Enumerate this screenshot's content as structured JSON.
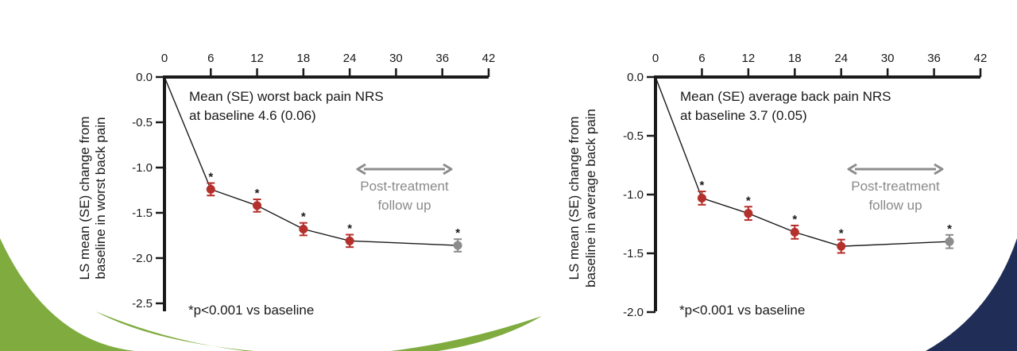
{
  "colors": {
    "treatment_point": "#b52f2b",
    "followup_point": "#8c8c8c",
    "axis": "#1a1a1a",
    "deco_green": "#7fab3f",
    "deco_navy": "#1f2d57"
  },
  "chart_data": [
    {
      "type": "line",
      "x_ticks": [
        "0",
        "6",
        "12",
        "18",
        "24",
        "30",
        "36",
        "42"
      ],
      "xlim": [
        0,
        42
      ],
      "y_ticks": [
        "0.0",
        "-0.5",
        "-1.0",
        "-1.5",
        "-2.0",
        "-2.5"
      ],
      "ylim": [
        -2.5,
        0
      ],
      "ylabel": [
        "LS mean (SE) change from",
        "baseline in worst back pain"
      ],
      "annotation": [
        "Mean (SE) worst back pain NRS",
        "at baseline 4.6 (0.06)"
      ],
      "followup_label": [
        "Post-treatment",
        "follow up"
      ],
      "footnote": "*p<0.001 vs baseline",
      "significance_marker": "*",
      "series": [
        {
          "x": [
            0,
            6,
            12,
            18,
            24,
            38
          ],
          "y": [
            0,
            -1.24,
            -1.42,
            -1.68,
            -1.81,
            -1.86
          ],
          "se": [
            0,
            0.06,
            0.06,
            0.06,
            0.06,
            0.06
          ],
          "phase": [
            "baseline",
            "treatment",
            "treatment",
            "treatment",
            "treatment",
            "followup"
          ],
          "significant": [
            false,
            true,
            true,
            true,
            true,
            true
          ]
        }
      ]
    },
    {
      "type": "line",
      "x_ticks": [
        "0",
        "6",
        "12",
        "18",
        "24",
        "30",
        "36",
        "42"
      ],
      "xlim": [
        0,
        42
      ],
      "y_ticks": [
        "0.0",
        "-0.5",
        "-1.0",
        "-1.5",
        "-2.0"
      ],
      "ylim": [
        -2.0,
        0
      ],
      "ylabel": [
        "LS mean (SE) change from",
        "baseline in average back pain"
      ],
      "annotation": [
        "Mean (SE) average back pain NRS",
        "at baseline 3.7 (0.05)"
      ],
      "followup_label": [
        "Post-treatment",
        "follow up"
      ],
      "footnote": "*p<0.001 vs baseline",
      "significance_marker": "*",
      "series": [
        {
          "x": [
            0,
            6,
            12,
            18,
            24,
            38
          ],
          "y": [
            0,
            -1.03,
            -1.16,
            -1.32,
            -1.44,
            -1.4
          ],
          "se": [
            0,
            0.05,
            0.05,
            0.05,
            0.05,
            0.05
          ],
          "phase": [
            "baseline",
            "treatment",
            "treatment",
            "treatment",
            "treatment",
            "followup"
          ],
          "significant": [
            false,
            true,
            true,
            true,
            true,
            true
          ]
        }
      ]
    }
  ]
}
